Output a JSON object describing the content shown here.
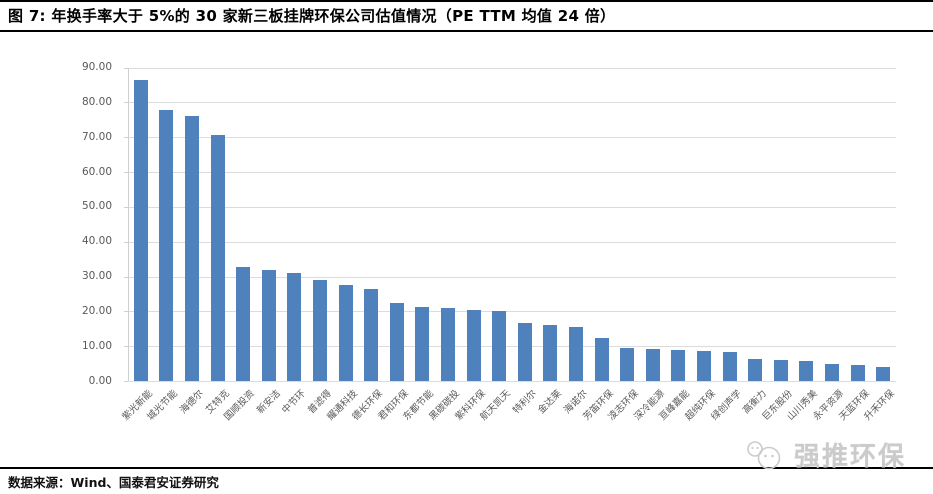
{
  "header": {
    "title": "图 7:  年换手率大于 5%的 30 家新三板挂牌环保公司估值情况（PE TTM 均值 24 倍）"
  },
  "chart_data": {
    "type": "bar",
    "title": "年换手率大于5%的30家新三板挂牌环保公司PE TTM",
    "categories": [
      "紫光新能",
      "城光节能",
      "海德尔",
      "艾特克",
      "国顺投资",
      "新安洁",
      "中节环",
      "普滤得",
      "耀通科技",
      "德长环保",
      "君和环保",
      "东都节能",
      "黑碳碳投",
      "紫科环保",
      "航天凯天",
      "特利尔",
      "金达莱",
      "海诺尔",
      "芳笛环保",
      "凌志环保",
      "深冷能源",
      "亘峰嘉能",
      "超纯环保",
      "绿创声学",
      "高衡力",
      "巨东股份",
      "山川秀美",
      "永平资源",
      "天蓝环保",
      "升禾环保"
    ],
    "values": [
      86.3,
      77.9,
      76.1,
      70.5,
      32.8,
      31.9,
      30.9,
      29.0,
      27.6,
      26.4,
      22.4,
      21.3,
      20.9,
      20.5,
      20.1,
      16.6,
      16.1,
      15.4,
      12.4,
      9.6,
      9.2,
      8.9,
      8.6,
      8.2,
      6.2,
      5.9,
      5.7,
      5.0,
      4.7,
      3.9
    ],
    "xlabel": "",
    "ylabel": "",
    "ylim": [
      0,
      90
    ],
    "ytick_step": 10,
    "ytick_labels": [
      "0.00",
      "10.00",
      "20.00",
      "30.00",
      "40.00",
      "50.00",
      "60.00",
      "70.00",
      "80.00",
      "90.00"
    ],
    "grid": true,
    "legend": false,
    "bar_color": "#4F81BD"
  },
  "colors": {
    "bar": "#4F81BD",
    "gridline": "#DCDCDC",
    "axis_label": "#595959",
    "title_text": "#000000",
    "watermark": "#CBCBCB"
  },
  "footer": {
    "source": "数据来源：Wind、国泰君安证券研究"
  },
  "watermark": {
    "text": "强推环保",
    "icon": "chat-faces-icon"
  }
}
